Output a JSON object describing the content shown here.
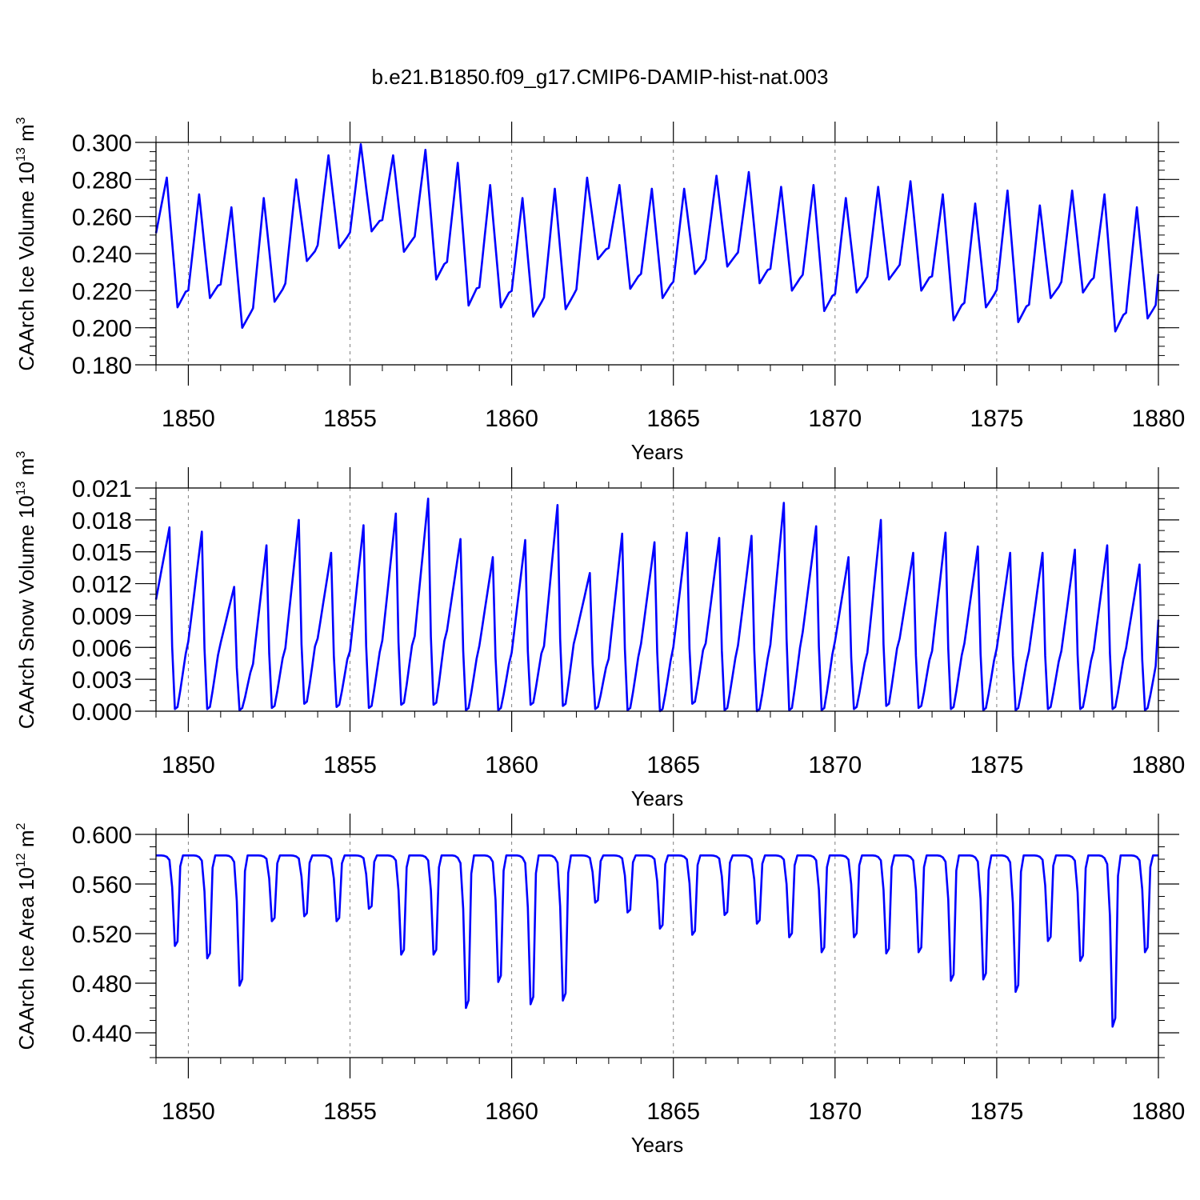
{
  "title": "b.e21.B1850.f09_g17.CMIP6-DAMIP-hist-nat.003",
  "colors": {
    "series": "#0000ff",
    "frame": "#000000",
    "grid": "#808080",
    "background": "#ffffff"
  },
  "x_axis": {
    "label": "Years",
    "range": [
      1849.0,
      1880.0
    ],
    "ticks": [
      1850,
      1855,
      1860,
      1865,
      1870,
      1875,
      1880
    ],
    "tick_labels": [
      "1850",
      "1855",
      "1860",
      "1865",
      "1870",
      "1875",
      "1880"
    ],
    "minor_step": 1
  },
  "chart_data": [
    {
      "type": "line",
      "name": "ice-volume",
      "ylabel": "CAArch Ice Volume 10",
      "ylabel_exp": "13",
      "ylabel_unit": " m",
      "ylabel_unit_exp": "3",
      "ylim": [
        0.18,
        0.3
      ],
      "yticks": [
        0.18,
        0.2,
        0.22,
        0.24,
        0.26,
        0.28,
        0.3
      ],
      "ytick_labels": [
        "0.180",
        "0.200",
        "0.220",
        "0.240",
        "0.260",
        "0.280",
        "0.300"
      ],
      "yminor_step": 0.005,
      "annual_max": [
        0.281,
        0.272,
        0.265,
        0.27,
        0.28,
        0.293,
        0.299,
        0.293,
        0.296,
        0.289,
        0.277,
        0.27,
        0.275,
        0.281,
        0.277,
        0.275,
        0.275,
        0.282,
        0.284,
        0.276,
        0.277,
        0.27,
        0.276,
        0.279,
        0.272,
        0.267,
        0.274,
        0.266,
        0.274,
        0.272,
        0.265
      ],
      "annual_min": [
        0.211,
        0.216,
        0.2,
        0.214,
        0.236,
        0.243,
        0.252,
        0.241,
        0.226,
        0.212,
        0.211,
        0.206,
        0.21,
        0.237,
        0.221,
        0.216,
        0.229,
        0.233,
        0.224,
        0.22,
        0.209,
        0.219,
        0.226,
        0.22,
        0.204,
        0.211,
        0.203,
        0.216,
        0.219,
        0.198,
        0.205
      ],
      "end_value": 0.229
    },
    {
      "type": "line",
      "name": "snow-volume",
      "ylabel": "CAArch Snow Volume 10",
      "ylabel_exp": "13",
      "ylabel_unit": " m",
      "ylabel_unit_exp": "3",
      "ylim": [
        0.0,
        0.021
      ],
      "yticks": [
        0.0,
        0.003,
        0.006,
        0.009,
        0.012,
        0.015,
        0.018,
        0.021
      ],
      "ytick_labels": [
        "0.000",
        "0.003",
        "0.006",
        "0.009",
        "0.012",
        "0.015",
        "0.018",
        "0.021"
      ],
      "yminor_step": 0.001,
      "start_value": 0.0105,
      "annual_max": [
        0.0173,
        0.0169,
        0.0117,
        0.0156,
        0.018,
        0.0149,
        0.0175,
        0.0186,
        0.02,
        0.0162,
        0.0145,
        0.0161,
        0.0194,
        0.013,
        0.0167,
        0.0159,
        0.0168,
        0.0163,
        0.0165,
        0.0196,
        0.0174,
        0.0145,
        0.018,
        0.0149,
        0.0168,
        0.0155,
        0.0149,
        0.0149,
        0.0152,
        0.0156,
        0.0138
      ],
      "annual_min": [
        0.0002,
        0.0002,
        0.0001,
        0.0003,
        0.0007,
        0.0004,
        0.0003,
        0.0006,
        0.0006,
        0.0001,
        0.0001,
        0.0006,
        0.0005,
        0.0002,
        0.0001,
        0.0,
        0.0007,
        0.0001,
        0.0,
        0.0001,
        0.0001,
        0.0002,
        0.0005,
        0.0003,
        0.0002,
        0.0001,
        0.0001,
        0.0002,
        0.0002,
        0.0002,
        0.0001
      ],
      "end_value": 0.0086
    },
    {
      "type": "line",
      "name": "ice-area",
      "ylabel": "CAArch Ice Area 10",
      "ylabel_exp": "12",
      "ylabel_unit": " m",
      "ylabel_unit_exp": "2",
      "ylim": [
        0.42,
        0.6
      ],
      "yticks": [
        0.44,
        0.48,
        0.52,
        0.56,
        0.6
      ],
      "ytick_labels": [
        "0.440",
        "0.480",
        "0.520",
        "0.560",
        "0.600"
      ],
      "yminor_step": 0.01,
      "plateau": 0.583,
      "annual_min": [
        0.51,
        0.5,
        0.478,
        0.53,
        0.534,
        0.53,
        0.54,
        0.503,
        0.503,
        0.46,
        0.481,
        0.463,
        0.466,
        0.545,
        0.537,
        0.524,
        0.519,
        0.535,
        0.528,
        0.517,
        0.505,
        0.517,
        0.504,
        0.505,
        0.482,
        0.483,
        0.473,
        0.514,
        0.498,
        0.445,
        0.505
      ],
      "end_value": 0.583
    }
  ]
}
